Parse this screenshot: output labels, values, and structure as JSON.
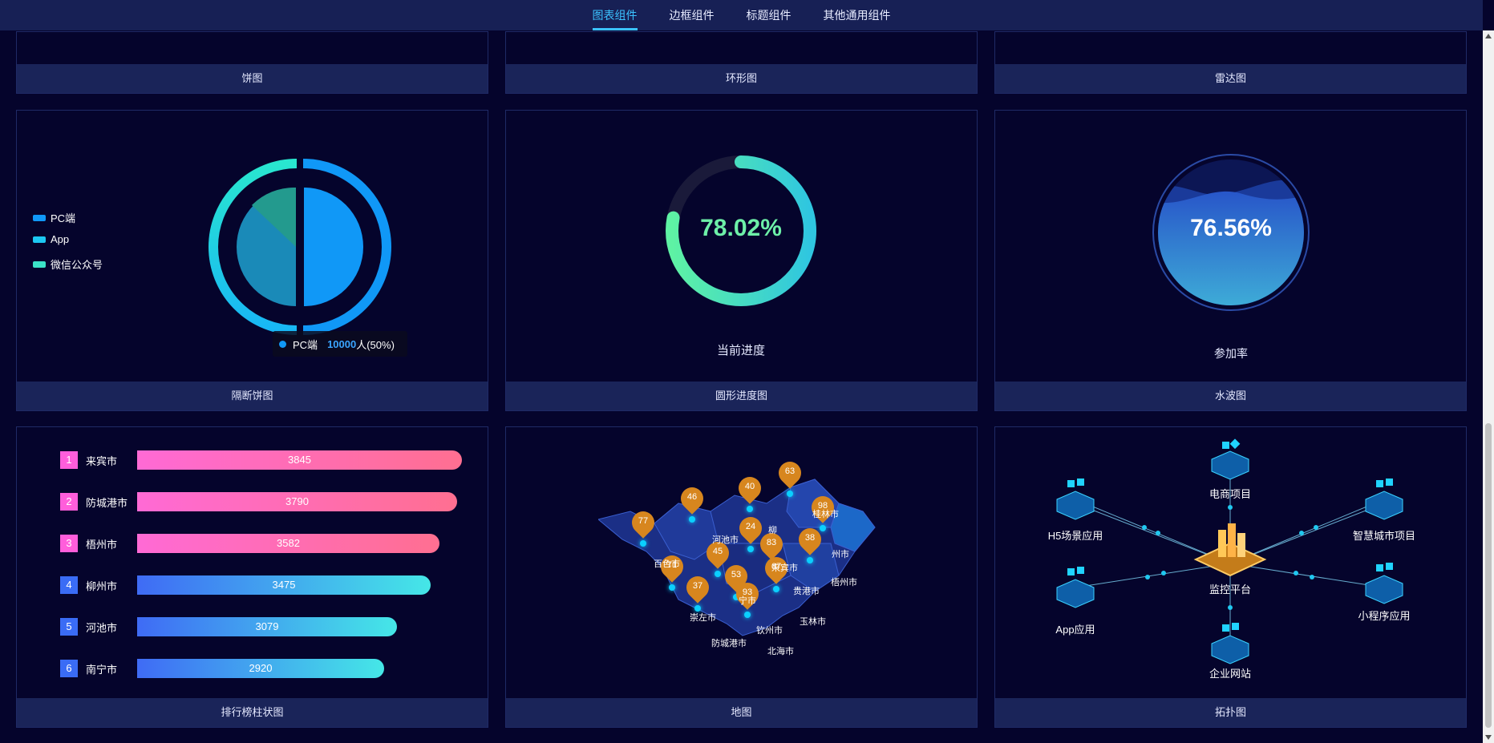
{
  "nav": {
    "tabs": [
      {
        "label": "图表组件"
      },
      {
        "label": "边框组件"
      },
      {
        "label": "标题组件"
      },
      {
        "label": "其他通用组件"
      }
    ]
  },
  "top_row": {
    "card1_title": "饼图",
    "card2_title": "环形图",
    "card3_title": "雷达图"
  },
  "isolated_pie": {
    "title": "隔断饼图",
    "legend": [
      "PC端",
      "App",
      "微信公众号"
    ],
    "tooltip": {
      "name": "PC端",
      "value": "10000",
      "suffix": "人(50%)"
    },
    "colors": {
      "pc": "#1098f7",
      "app": "#1cc8f2",
      "wechat": "#3be3c7"
    }
  },
  "circular_progress": {
    "title": "圆形进度图",
    "value_text": "78.02%",
    "value": 78.02,
    "label": "当前进度"
  },
  "water_wave": {
    "title": "水波图",
    "value_text": "76.56%",
    "value": 76.56,
    "label": "参加率"
  },
  "ranking": {
    "title": "排行榜柱状图",
    "max": 3845,
    "rows": [
      {
        "rank": "1",
        "name": "来宾市",
        "value": "3845",
        "v": 3845
      },
      {
        "rank": "2",
        "name": "防城港市",
        "value": "3790",
        "v": 3790
      },
      {
        "rank": "3",
        "name": "梧州市",
        "value": "3582",
        "v": 3582
      },
      {
        "rank": "4",
        "name": "柳州市",
        "value": "3475",
        "v": 3475
      },
      {
        "rank": "5",
        "name": "河池市",
        "value": "3079",
        "v": 3079
      },
      {
        "rank": "6",
        "name": "南宁市",
        "value": "2920",
        "v": 2920
      }
    ]
  },
  "map": {
    "title": "地图",
    "pins": [
      "77",
      "46",
      "40",
      "63",
      "98",
      "24",
      "38",
      "83",
      "45",
      "67",
      "71",
      "37",
      "53",
      "93"
    ],
    "labels": [
      "百色市",
      "河池市",
      "桂林市",
      "梧州市",
      "来宾市",
      "贵港市",
      "崇左市",
      "宁市",
      "玉林市",
      "钦州市",
      "防城港市",
      "北海市",
      "柳",
      "州市"
    ]
  },
  "topology": {
    "title": "拓扑图",
    "nodes": [
      "电商项目",
      "H5场景应用",
      "智慧城市项目",
      "监控平台",
      "App应用",
      "小程序应用",
      "企业网站"
    ]
  }
}
